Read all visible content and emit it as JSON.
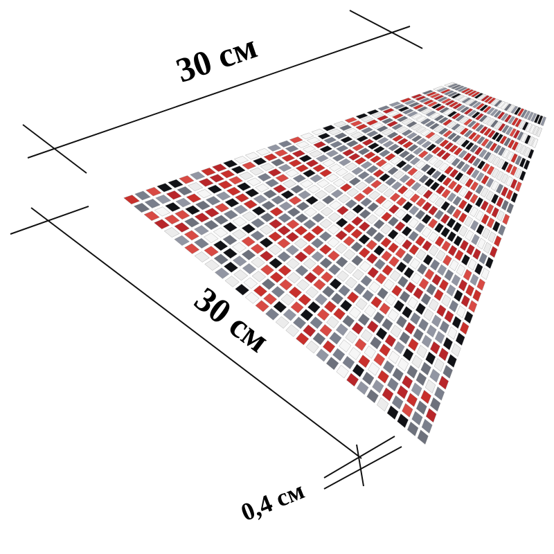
{
  "labels": {
    "width": "30 см",
    "length": "30 см",
    "thickness": "0,4 см"
  }
}
